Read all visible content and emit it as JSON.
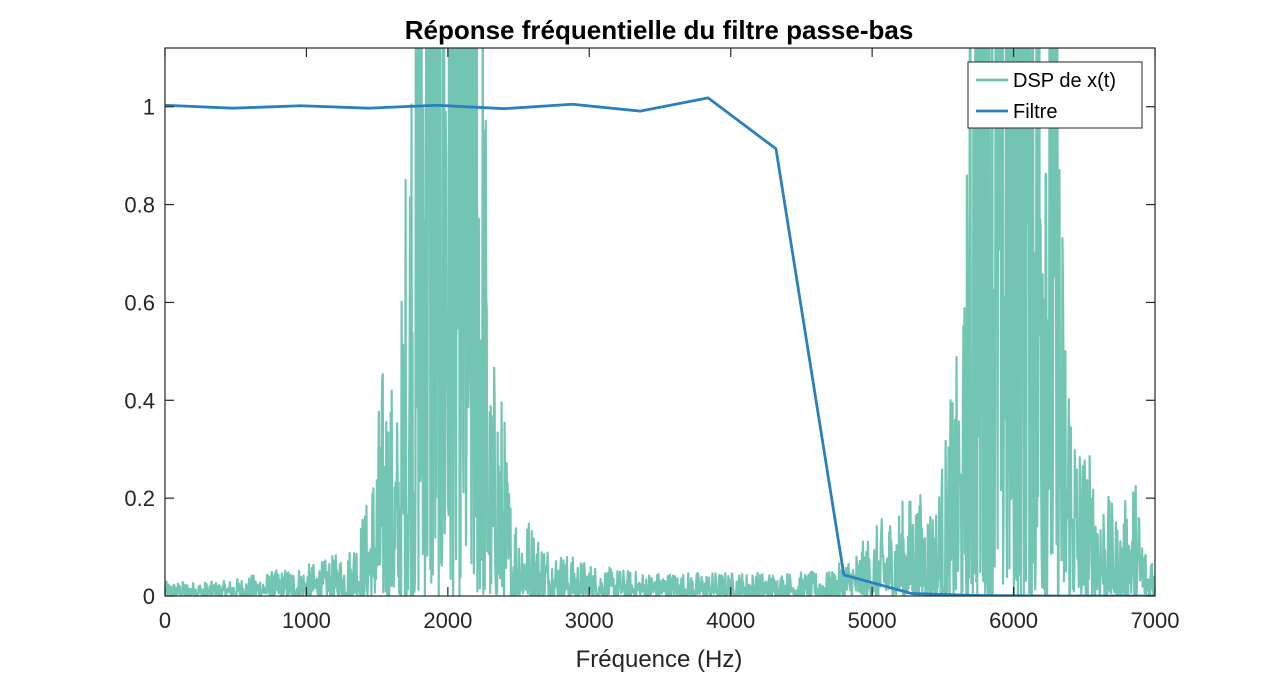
{
  "chart_data": {
    "type": "line",
    "title": "Réponse fréquentielle du filtre passe-bas",
    "xlabel": "Fréquence (Hz)",
    "ylabel": "",
    "xlim": [
      0,
      7000
    ],
    "ylim": [
      0,
      1.12
    ],
    "grid": false,
    "legend_position": "top-right",
    "x_ticks": [
      0,
      1000,
      2000,
      3000,
      4000,
      5000,
      6000,
      7000
    ],
    "x_tick_labels": [
      "0",
      "1000",
      "2000",
      "3000",
      "4000",
      "5000",
      "6000",
      "7000"
    ],
    "y_ticks": [
      0,
      0.2,
      0.4,
      0.6,
      0.8,
      1
    ],
    "y_tick_labels": [
      "0",
      "0.2",
      "0.4",
      "0.6",
      "0.8",
      "1"
    ],
    "series": [
      {
        "name": "DSP de x(t)",
        "color": "#26a68a",
        "opacity": 0.65,
        "style": "dense-noisy-spectrum",
        "envelope": {
          "x": [
            0,
            400,
            900,
            1100,
            1300,
            1450,
            1550,
            1650,
            1750,
            1800,
            1900,
            2000,
            2100,
            2200,
            2300,
            2350,
            2400,
            2450,
            2550,
            2650,
            2750,
            2900,
            3100,
            3400,
            3700,
            4000,
            4400,
            4700,
            4900,
            5100,
            5300,
            5450,
            5550,
            5650,
            5750,
            5850,
            5950,
            6050,
            6150,
            6250,
            6350,
            6450,
            6600,
            6750,
            6850,
            6950,
            7000
          ],
          "y": [
            0.03,
            0.03,
            0.06,
            0.07,
            0.1,
            0.22,
            0.52,
            0.4,
            1.5,
            2.5,
            2.5,
            2.5,
            2.5,
            2.5,
            0.45,
            0.54,
            0.38,
            0.2,
            0.18,
            0.13,
            0.1,
            0.08,
            0.06,
            0.05,
            0.05,
            0.05,
            0.05,
            0.05,
            0.1,
            0.17,
            0.22,
            0.2,
            0.4,
            0.6,
            2.5,
            2.5,
            2.5,
            2.5,
            2.5,
            2.5,
            0.75,
            0.36,
            0.26,
            0.15,
            0.27,
            0.08,
            0.14
          ]
        }
      },
      {
        "name": "Filtre",
        "color": "#2a7fbd",
        "x": [
          0,
          480,
          960,
          1440,
          1920,
          2400,
          2880,
          3360,
          3840,
          4320,
          4800,
          5280,
          5760,
          6240,
          6720,
          7000
        ],
        "y": [
          1.003,
          0.997,
          1.002,
          0.997,
          1.003,
          0.996,
          1.005,
          0.991,
          1.018,
          0.914,
          0.043,
          0.005,
          0.001,
          0.0,
          0.0,
          0.0
        ]
      }
    ]
  }
}
